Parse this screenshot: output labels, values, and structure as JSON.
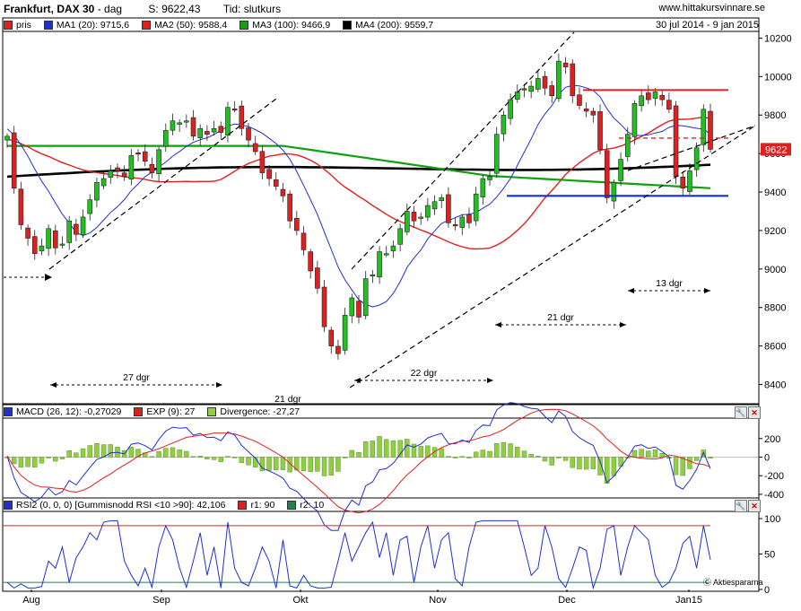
{
  "header": {
    "title": "Frankfurt, DAX 30",
    "period": "dag",
    "price": "S: 9622,43",
    "time": "Tid: slutkurs",
    "site": "www.hittakursvinnare.se",
    "daterange": "30 jul 2014 - 9 jan 2015"
  },
  "legend_price": [
    {
      "label": "pris",
      "color": "#e02020"
    },
    {
      "label": "MA1 (20): 9715,6",
      "color": "#2030d0"
    },
    {
      "label": "MA2 (50): 9588,4",
      "color": "#e02020"
    },
    {
      "label": "MA3 (100): 9466,9",
      "color": "#10a010"
    },
    {
      "label": "MA4 (200): 9559,7",
      "color": "#000000"
    }
  ],
  "legend_macd": [
    {
      "label": "MACD (26, 12): -0,27029",
      "color": "#2030d0"
    },
    {
      "label": "EXP (9): 27",
      "color": "#e02020"
    },
    {
      "label": "Divergence: -27,27",
      "color": "#90d040"
    }
  ],
  "legend_rsi": [
    {
      "label": "RSI2 (0, 0, 0) [Gummisnodd RSI <10 >90]: 42,106",
      "color": "#2030d0"
    },
    {
      "label": "r1: 90",
      "color": "#e02020"
    },
    {
      "label": "r2: 10",
      "color": "#208050"
    }
  ],
  "current_price_label": "9622",
  "watermark": "Aktiespararna",
  "icons": {
    "wrench": "wrench-icon",
    "close": "close-icon"
  },
  "chart_data": {
    "type": "candlestick",
    "x_month_labels": [
      "Aug",
      "Sep",
      "Okt",
      "Nov",
      "Dec",
      "Jan15"
    ],
    "y_ticks": [
      8400,
      8600,
      8800,
      9000,
      9200,
      9400,
      9600,
      9800,
      10000,
      10200
    ],
    "ylim": [
      8300,
      10230
    ],
    "closes": [
      9690,
      9420,
      9230,
      9160,
      9080,
      9120,
      9210,
      9110,
      9130,
      9250,
      9180,
      9270,
      9360,
      9450,
      9470,
      9510,
      9510,
      9480,
      9590,
      9600,
      9560,
      9500,
      9620,
      9720,
      9770,
      9760,
      9770,
      9690,
      9730,
      9700,
      9730,
      9710,
      9840,
      9830,
      9730,
      9670,
      9610,
      9500,
      9470,
      9430,
      9380,
      9250,
      9200,
      9100,
      8990,
      8900,
      8700,
      8600,
      8560,
      8760,
      8850,
      8750,
      8950,
      8970,
      9090,
      9080,
      9120,
      9210,
      9300,
      9250,
      9270,
      9330,
      9350,
      9370,
      9240,
      9230,
      9270,
      9240,
      9390,
      9470,
      9480,
      9700,
      9800,
      9880,
      9920,
      9930,
      9950,
      9990,
      9940,
      9900,
      10080,
      10050,
      9900,
      9850,
      9820,
      9800,
      9620,
      9370,
      9450,
      9570,
      9700,
      9860,
      9900,
      9880,
      9920,
      9880,
      9830,
      9480,
      9420,
      9510,
      9630,
      9830,
      9622
    ],
    "annotations": [
      "27 dgr",
      "21 dgr",
      "22 dgr",
      "21 dgr",
      "13 dgr"
    ],
    "levels": {
      "resistance": 9930,
      "support": 9380,
      "dashed": 9680
    },
    "macd_ylim": [
      -420,
      420
    ],
    "macd_ticks": [
      200,
      0,
      -200,
      -400
    ],
    "rsi_ylim": [
      0,
      100
    ],
    "rsi_ticks": [
      100,
      50,
      0
    ],
    "rsi_levels": [
      90,
      10
    ],
    "rsi_values": [
      10,
      2,
      8,
      2,
      2,
      4,
      40,
      30,
      60,
      10,
      45,
      60,
      80,
      70,
      95,
      97,
      97,
      40,
      20,
      5,
      30,
      3,
      60,
      90,
      70,
      30,
      3,
      40,
      80,
      20,
      60,
      2,
      95,
      30,
      10,
      5,
      30,
      60,
      40,
      2,
      70,
      5,
      2,
      20,
      5,
      2,
      2,
      3,
      40,
      80,
      40,
      60,
      80,
      95,
      45,
      80,
      20,
      70,
      75,
      10,
      60,
      90,
      30,
      70,
      80,
      15,
      5,
      60,
      95,
      97,
      97,
      97,
      97,
      97,
      97,
      60,
      20,
      30,
      90,
      60,
      15,
      3,
      30,
      60,
      55,
      2,
      30,
      85,
      90,
      20,
      60,
      90,
      80,
      70,
      20,
      3,
      10,
      30,
      65,
      75,
      30,
      90,
      42
    ]
  }
}
